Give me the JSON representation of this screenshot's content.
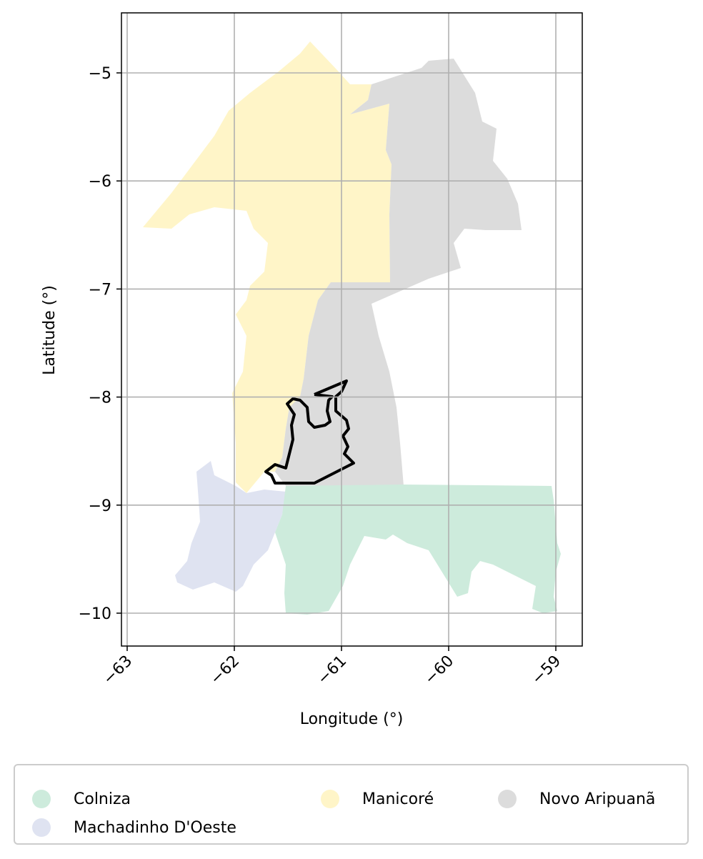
{
  "map": {
    "xlabel": "Longitude (°)",
    "ylabel": "Latitude (°)",
    "xlim": [
      -63.05,
      -58.75
    ],
    "ylim": [
      -10.3,
      -4.45
    ],
    "xticks": [
      -63,
      -62,
      -61,
      -60,
      -59
    ],
    "yticks": [
      -5,
      -6,
      -7,
      -8,
      -9,
      -10
    ],
    "xtick_labels": [
      "−63",
      "−62",
      "−61",
      "−60",
      "−59"
    ],
    "ytick_labels": [
      "−5",
      "−6",
      "−7",
      "−8",
      "−9",
      "−10"
    ],
    "grid": true,
    "regions": [
      {
        "name": "Colniza",
        "color": "#cdebdc"
      },
      {
        "name": "Machadinho D'Oeste",
        "color": "#dfe3f1"
      },
      {
        "name": "Manicoré",
        "color": "#fff5c8"
      },
      {
        "name": "Novo Aripuanã",
        "color": "#dcdcdc"
      }
    ],
    "outline_color": "#000000"
  },
  "legend": {
    "items": [
      {
        "label": "Colniza",
        "color": "#cdebdc"
      },
      {
        "label": "Machadinho D'Oeste",
        "color": "#dfe3f1"
      },
      {
        "label": "Manicoré",
        "color": "#fff5c8"
      },
      {
        "label": "Novo Aripuanã",
        "color": "#dcdcdc"
      }
    ]
  }
}
